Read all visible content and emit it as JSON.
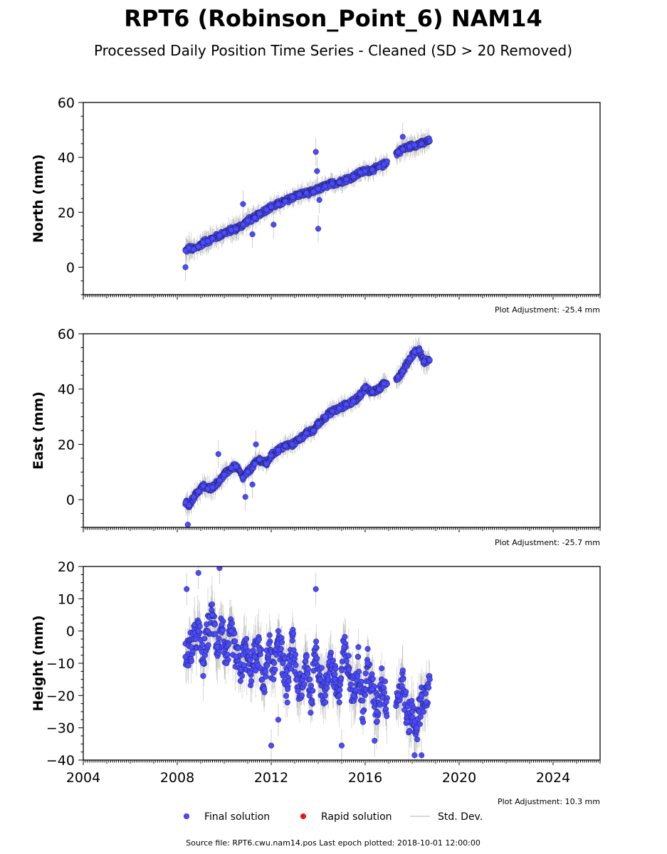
{
  "title": "RPT6 (Robinson_Point_6) NAM14",
  "subtitle": "Processed Daily Position Time Series - Cleaned (SD > 20 Removed)",
  "footer": "Source file: RPT6.cwu.nam14.pos  Last epoch plotted: 2018-10-01 12:00:00",
  "legend": [
    {
      "label": "Final solution",
      "color": "#4a4aff",
      "kind": "marker"
    },
    {
      "label": "Rapid solution",
      "color": "#ee1111",
      "kind": "marker"
    },
    {
      "label": "Std. Dev.",
      "color": "#cccccc",
      "kind": "line"
    }
  ],
  "colors": {
    "final": "#4a4aff",
    "rapid": "#ee1111",
    "stddev": "#9a9a9a"
  },
  "chart_data": [
    {
      "type": "scatter",
      "ylabel": "North (mm)",
      "xlim": [
        2004,
        2026
      ],
      "ylim": [
        -10,
        60
      ],
      "xticks": [
        2004,
        2008,
        2012,
        2016,
        2020,
        2024
      ],
      "show_xtick_labels": false,
      "yticks": [
        0,
        20,
        40,
        60
      ],
      "adjustment": "Plot Adjustment: -25.4 mm",
      "series": [
        {
          "x": [
            2008.35,
            2008.5,
            2008.7,
            2008.9,
            2009.1,
            2009.3,
            2009.5,
            2009.8,
            2010.0,
            2010.3,
            2010.5,
            2010.8,
            2011.0,
            2011.3,
            2011.5,
            2011.8,
            2012.0,
            2012.3,
            2012.6,
            2012.9,
            2013.2,
            2013.5,
            2013.8,
            2014.0,
            2014.3,
            2014.6,
            2014.9,
            2015.2,
            2015.5,
            2015.8,
            2016.0,
            2016.3,
            2016.6,
            2016.8,
            2017.4,
            2017.6,
            2017.9,
            2018.1,
            2018.4,
            2018.75
          ],
          "y": [
            6,
            7,
            6.5,
            7.5,
            9,
            9.5,
            10.5,
            11.5,
            12.5,
            13.5,
            14,
            15.5,
            17,
            18,
            19.5,
            21,
            22,
            23,
            24,
            25.5,
            26.5,
            27,
            27.5,
            28.5,
            29.5,
            30.5,
            31,
            32,
            33,
            34.5,
            35,
            35.5,
            36.5,
            37.5,
            42,
            43,
            44,
            44.5,
            45,
            46
          ],
          "sd": [
            3,
            4,
            3,
            3,
            3,
            3,
            3,
            3,
            2.5,
            3,
            3,
            3,
            3,
            3,
            2.5,
            2.5,
            2.5,
            2.5,
            2.5,
            2.5,
            2.5,
            2.5,
            2.5,
            2.5,
            2.5,
            2.5,
            2.5,
            2.5,
            2.5,
            2.5,
            2.5,
            2.5,
            2.5,
            2.5,
            3,
            3,
            3,
            3,
            3,
            3
          ],
          "outliers": [
            [
              2008.35,
              0
            ],
            [
              2010.8,
              23
            ],
            [
              2011.2,
              12
            ],
            [
              2012.1,
              15.5
            ],
            [
              2013.9,
              42
            ],
            [
              2013.95,
              35
            ],
            [
              2014.0,
              14
            ],
            [
              2014.05,
              24.5
            ],
            [
              2017.6,
              47.5
            ]
          ]
        }
      ]
    },
    {
      "type": "scatter",
      "ylabel": "East (mm)",
      "xlim": [
        2004,
        2026
      ],
      "ylim": [
        -10,
        60
      ],
      "xticks": [
        2004,
        2008,
        2012,
        2016,
        2020,
        2024
      ],
      "show_xtick_labels": false,
      "yticks": [
        0,
        20,
        40,
        60
      ],
      "adjustment": "Plot Adjustment: -25.7 mm",
      "series": [
        {
          "x": [
            2008.35,
            2008.5,
            2008.7,
            2008.9,
            2009.1,
            2009.3,
            2009.5,
            2009.8,
            2010.0,
            2010.3,
            2010.5,
            2010.8,
            2011.0,
            2011.3,
            2011.5,
            2011.8,
            2012.0,
            2012.3,
            2012.6,
            2012.9,
            2013.2,
            2013.5,
            2013.8,
            2014.0,
            2014.3,
            2014.6,
            2014.9,
            2015.2,
            2015.5,
            2015.8,
            2016.0,
            2016.3,
            2016.6,
            2016.8,
            2017.4,
            2017.6,
            2017.9,
            2018.1,
            2018.3,
            2018.5,
            2018.75
          ],
          "y": [
            -1,
            -2,
            1,
            3,
            5,
            4,
            4.5,
            7,
            9,
            11.5,
            12,
            8,
            10,
            13,
            14.5,
            13,
            16,
            18,
            19.5,
            20,
            22,
            24,
            25,
            27.5,
            30,
            32,
            33,
            34.5,
            35.5,
            38,
            40.5,
            39,
            40,
            42,
            44.5,
            46.5,
            51,
            53.5,
            54,
            50,
            50.5
          ],
          "sd": [
            3,
            3,
            3,
            3,
            3,
            3,
            3,
            3,
            3,
            2.5,
            2.5,
            2.5,
            2.5,
            2.5,
            2.5,
            2.5,
            2.5,
            2.5,
            2.5,
            2.5,
            2.5,
            2.5,
            2.5,
            2.5,
            2.5,
            2.5,
            2.5,
            2.5,
            2.5,
            2.5,
            2.5,
            2.5,
            2.5,
            2.5,
            3,
            3,
            3,
            3,
            3,
            3,
            3
          ],
          "outliers": [
            [
              2008.45,
              -9
            ],
            [
              2009.75,
              16.5
            ],
            [
              2010.9,
              1
            ],
            [
              2011.2,
              5.5
            ],
            [
              2011.35,
              20
            ]
          ]
        }
      ]
    },
    {
      "type": "scatter",
      "ylabel": "Height (mm)",
      "xlim": [
        2004,
        2026
      ],
      "ylim": [
        -40,
        20
      ],
      "xticks": [
        2004,
        2008,
        2012,
        2016,
        2020,
        2024
      ],
      "show_xtick_labels": true,
      "yticks": [
        -40,
        -30,
        -20,
        -10,
        0,
        10,
        20
      ],
      "adjustment": "Plot Adjustment: 10.3 mm",
      "series": [
        {
          "x": [
            2008.35,
            2008.6,
            2008.9,
            2009.1,
            2009.3,
            2009.5,
            2009.7,
            2009.9,
            2010.1,
            2010.3,
            2010.5,
            2010.7,
            2010.9,
            2011.1,
            2011.3,
            2011.5,
            2011.7,
            2011.9,
            2012.1,
            2012.3,
            2012.5,
            2012.7,
            2012.9,
            2013.1,
            2013.3,
            2013.5,
            2013.7,
            2013.9,
            2014.1,
            2014.3,
            2014.5,
            2014.7,
            2014.9,
            2015.1,
            2015.3,
            2015.5,
            2015.7,
            2015.9,
            2016.1,
            2016.3,
            2016.5,
            2016.7,
            2016.9,
            2017.4,
            2017.6,
            2017.8,
            2018.0,
            2018.2,
            2018.4,
            2018.6,
            2018.75
          ],
          "y": [
            -8,
            -5,
            0,
            -10,
            0,
            5,
            -5,
            2,
            -10,
            0,
            -8,
            -12,
            -5,
            -13,
            -8,
            -6,
            -18,
            -4,
            -15,
            0,
            -10,
            -18,
            -3,
            -15,
            -20,
            -8,
            -22,
            -5,
            -15,
            -20,
            -8,
            -15,
            -20,
            -5,
            -12,
            -20,
            -8,
            -25,
            -10,
            -18,
            -25,
            -15,
            -22,
            -20,
            -15,
            -28,
            -25,
            -30,
            -20,
            -22,
            -15
          ],
          "sd": [
            6,
            6,
            6,
            6,
            6,
            6,
            6,
            6,
            6,
            6,
            6,
            6,
            6,
            6,
            6,
            6,
            6,
            6,
            6,
            6,
            6,
            6,
            6,
            6,
            6,
            6,
            6,
            6,
            6,
            6,
            6,
            6,
            6,
            6,
            6,
            6,
            6,
            6,
            6,
            6,
            6,
            6,
            6,
            6,
            6,
            6,
            6,
            6,
            6,
            6,
            6
          ],
          "outliers": [
            [
              2008.4,
              13
            ],
            [
              2008.9,
              18
            ],
            [
              2009.8,
              19.5
            ],
            [
              2012.0,
              -35.5
            ],
            [
              2012.3,
              -27.5
            ],
            [
              2015.0,
              -35.5
            ],
            [
              2016.4,
              -34
            ],
            [
              2018.1,
              -38.5
            ],
            [
              2018.4,
              -38.5
            ],
            [
              2013.9,
              13
            ]
          ]
        }
      ]
    }
  ]
}
